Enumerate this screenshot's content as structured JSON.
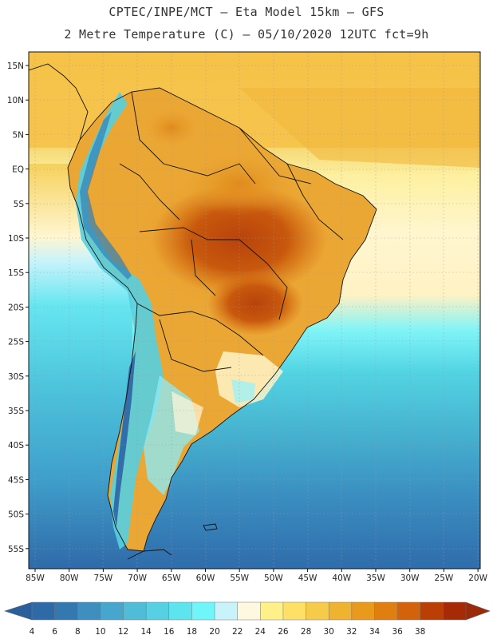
{
  "header": {
    "line1": "CPTEC/INPE/MCT –  Eta Model 15km – GFS",
    "line2": "2 Metre Temperature (C) – 05/10/2020 12UTC fct=9h"
  },
  "map": {
    "lat_labels": [
      "15N",
      "10N",
      "5N",
      "EQ",
      "5S",
      "10S",
      "15S",
      "20S",
      "25S",
      "30S",
      "35S",
      "40S",
      "45S",
      "50S",
      "55S"
    ],
    "lon_labels": [
      "85W",
      "80W",
      "75W",
      "70W",
      "65W",
      "60W",
      "55W",
      "50W",
      "45W",
      "40W",
      "35W",
      "30W",
      "25W",
      "20W"
    ]
  },
  "colorbar": {
    "labels": [
      "4",
      "6",
      "8",
      "10",
      "12",
      "14",
      "16",
      "18",
      "20",
      "22",
      "24",
      "26",
      "28",
      "30",
      "32",
      "34",
      "36",
      "38"
    ],
    "colors": [
      "#2f6aa8",
      "#3478b2",
      "#3e8fc0",
      "#47a6cd",
      "#4fbcd8",
      "#56d0e2",
      "#5de4ee",
      "#6ef6fb",
      "#c8f3fb",
      "#fff8e0",
      "#fff08a",
      "#fde065",
      "#f7cb4a",
      "#efb32f",
      "#e99a1c",
      "#e07e10",
      "#d4620a",
      "#bb3e05",
      "#a52a05"
    ],
    "low_color": "#2a5f9c",
    "high_color": "#9c2a08"
  }
}
